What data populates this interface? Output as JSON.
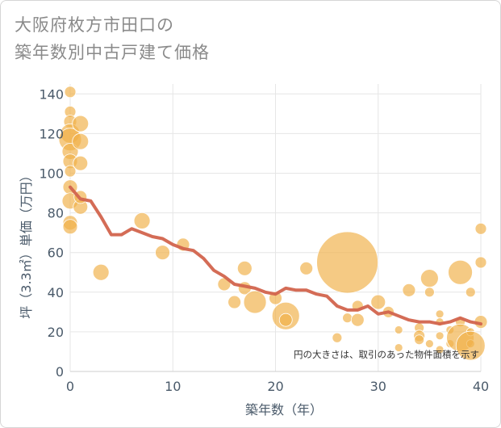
{
  "chart_data": {
    "type": "scatter",
    "title_lines": [
      "大阪府枚方市田口の",
      "築年数別中古戸建て価格"
    ],
    "xlabel": "築年数（年）",
    "ylabel": "坪（3.3㎡）単価（万円）",
    "annotation": "円の大きさは、取引のあった物件面積を示す",
    "xlim": [
      0,
      40
    ],
    "ylim": [
      0,
      145
    ],
    "x_ticks": [
      0,
      10,
      20,
      30,
      40
    ],
    "y_ticks": [
      0,
      20,
      40,
      60,
      80,
      100,
      120,
      140
    ],
    "grid": true,
    "colors": {
      "bubble": "#f0b14a",
      "line": "#d2644d",
      "grid": "#e6e6e6"
    },
    "bubbles": [
      {
        "x": 0,
        "y": 141,
        "s": 7
      },
      {
        "x": 0,
        "y": 131,
        "s": 7
      },
      {
        "x": 0,
        "y": 126,
        "s": 8
      },
      {
        "x": 0,
        "y": 120,
        "s": 12
      },
      {
        "x": 0,
        "y": 117,
        "s": 14
      },
      {
        "x": 0,
        "y": 111,
        "s": 10
      },
      {
        "x": 0,
        "y": 106,
        "s": 9
      },
      {
        "x": 0,
        "y": 101,
        "s": 7
      },
      {
        "x": 0,
        "y": 93,
        "s": 9
      },
      {
        "x": 0,
        "y": 86,
        "s": 10
      },
      {
        "x": 0,
        "y": 75,
        "s": 9
      },
      {
        "x": 0,
        "y": 73,
        "s": 9
      },
      {
        "x": 1,
        "y": 125,
        "s": 10
      },
      {
        "x": 1,
        "y": 116,
        "s": 10
      },
      {
        "x": 1,
        "y": 105,
        "s": 9
      },
      {
        "x": 1,
        "y": 83,
        "s": 9
      },
      {
        "x": 1,
        "y": 88,
        "s": 8
      },
      {
        "x": 3,
        "y": 50,
        "s": 10
      },
      {
        "x": 7,
        "y": 76,
        "s": 10
      },
      {
        "x": 9,
        "y": 60,
        "s": 9
      },
      {
        "x": 11,
        "y": 64,
        "s": 8
      },
      {
        "x": 15,
        "y": 44,
        "s": 8
      },
      {
        "x": 16,
        "y": 35,
        "s": 8
      },
      {
        "x": 17,
        "y": 52,
        "s": 9
      },
      {
        "x": 17,
        "y": 42,
        "s": 8
      },
      {
        "x": 18,
        "y": 35,
        "s": 14
      },
      {
        "x": 20,
        "y": 37,
        "s": 8
      },
      {
        "x": 21,
        "y": 28,
        "s": 17
      },
      {
        "x": 21,
        "y": 26,
        "s": 8
      },
      {
        "x": 23,
        "y": 52,
        "s": 8
      },
      {
        "x": 26,
        "y": 17,
        "s": 6
      },
      {
        "x": 27,
        "y": 55,
        "s": 38
      },
      {
        "x": 27,
        "y": 27,
        "s": 6
      },
      {
        "x": 28,
        "y": 33,
        "s": 7
      },
      {
        "x": 28,
        "y": 26,
        "s": 8
      },
      {
        "x": 30,
        "y": 35,
        "s": 9
      },
      {
        "x": 31,
        "y": 30,
        "s": 7
      },
      {
        "x": 32,
        "y": 21,
        "s": 5
      },
      {
        "x": 32,
        "y": 12,
        "s": 5
      },
      {
        "x": 33,
        "y": 41,
        "s": 8
      },
      {
        "x": 34,
        "y": 22,
        "s": 6
      },
      {
        "x": 34,
        "y": 18,
        "s": 7
      },
      {
        "x": 34,
        "y": 16,
        "s": 6
      },
      {
        "x": 35,
        "y": 47,
        "s": 11
      },
      {
        "x": 35,
        "y": 40,
        "s": 6
      },
      {
        "x": 35,
        "y": 14,
        "s": 5
      },
      {
        "x": 36,
        "y": 29,
        "s": 5
      },
      {
        "x": 36,
        "y": 25,
        "s": 5
      },
      {
        "x": 36,
        "y": 18,
        "s": 5
      },
      {
        "x": 36,
        "y": 11,
        "s": 5
      },
      {
        "x": 37,
        "y": 21,
        "s": 5
      },
      {
        "x": 37,
        "y": 14,
        "s": 5
      },
      {
        "x": 38,
        "y": 50,
        "s": 15
      },
      {
        "x": 38,
        "y": 25,
        "s": 6
      },
      {
        "x": 38,
        "y": 17,
        "s": 17
      },
      {
        "x": 39,
        "y": 40,
        "s": 6
      },
      {
        "x": 39,
        "y": 20,
        "s": 5
      },
      {
        "x": 39,
        "y": 14,
        "s": 5
      },
      {
        "x": 39,
        "y": 13,
        "s": 18
      },
      {
        "x": 40,
        "y": 72,
        "s": 7
      },
      {
        "x": 40,
        "y": 55,
        "s": 7
      },
      {
        "x": 40,
        "y": 25,
        "s": 8
      }
    ],
    "trend": {
      "x": [
        0,
        1,
        2,
        3,
        4,
        5,
        6,
        7,
        8,
        9,
        10,
        11,
        12,
        13,
        14,
        15,
        16,
        17,
        18,
        19,
        20,
        21,
        22,
        23,
        24,
        25,
        26,
        27,
        28,
        29,
        30,
        31,
        32,
        33,
        34,
        35,
        36,
        37,
        38,
        39,
        40
      ],
      "y": [
        93,
        87,
        86,
        78,
        69,
        69,
        72,
        70,
        68,
        67,
        64,
        62,
        61,
        57,
        51,
        48,
        44,
        43,
        42,
        40,
        39,
        42,
        41,
        41,
        39,
        38,
        33,
        31,
        31,
        33,
        29,
        30,
        28,
        26,
        25,
        25,
        24,
        25,
        27,
        25,
        24
      ]
    }
  }
}
